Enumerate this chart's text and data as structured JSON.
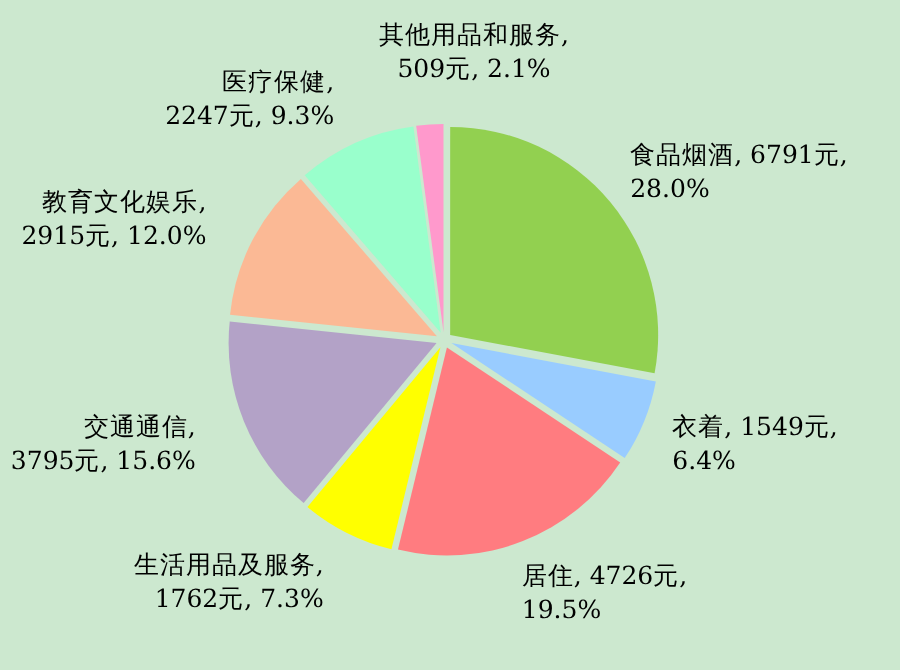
{
  "chart_data": {
    "type": "pie",
    "categories": [
      "食品烟酒",
      "衣着",
      "居住",
      "生活用品及服务",
      "交通通信",
      "教育文化娱乐",
      "医疗保健",
      "其他用品和服务"
    ],
    "values": [
      6791,
      1549,
      4726,
      1762,
      3795,
      2915,
      2247,
      509
    ],
    "value_labels": [
      ", 6791元,\n28.0%",
      ", 1549元,\n6.4%",
      ", 4726元,\n19.5%",
      ",\n1762元, 7.3%",
      ",\n3795元, 15.6%",
      ",\n2915元, 12.0%",
      ",\n2247元, 9.3%",
      ",\n509元, 2.1%"
    ],
    "colors": [
      "#92d050",
      "#99ccff",
      "#ff7c80",
      "#ffff00",
      "#b3a2c7",
      "#fbb995",
      "#99ffcc",
      "#ff99cc"
    ]
  }
}
